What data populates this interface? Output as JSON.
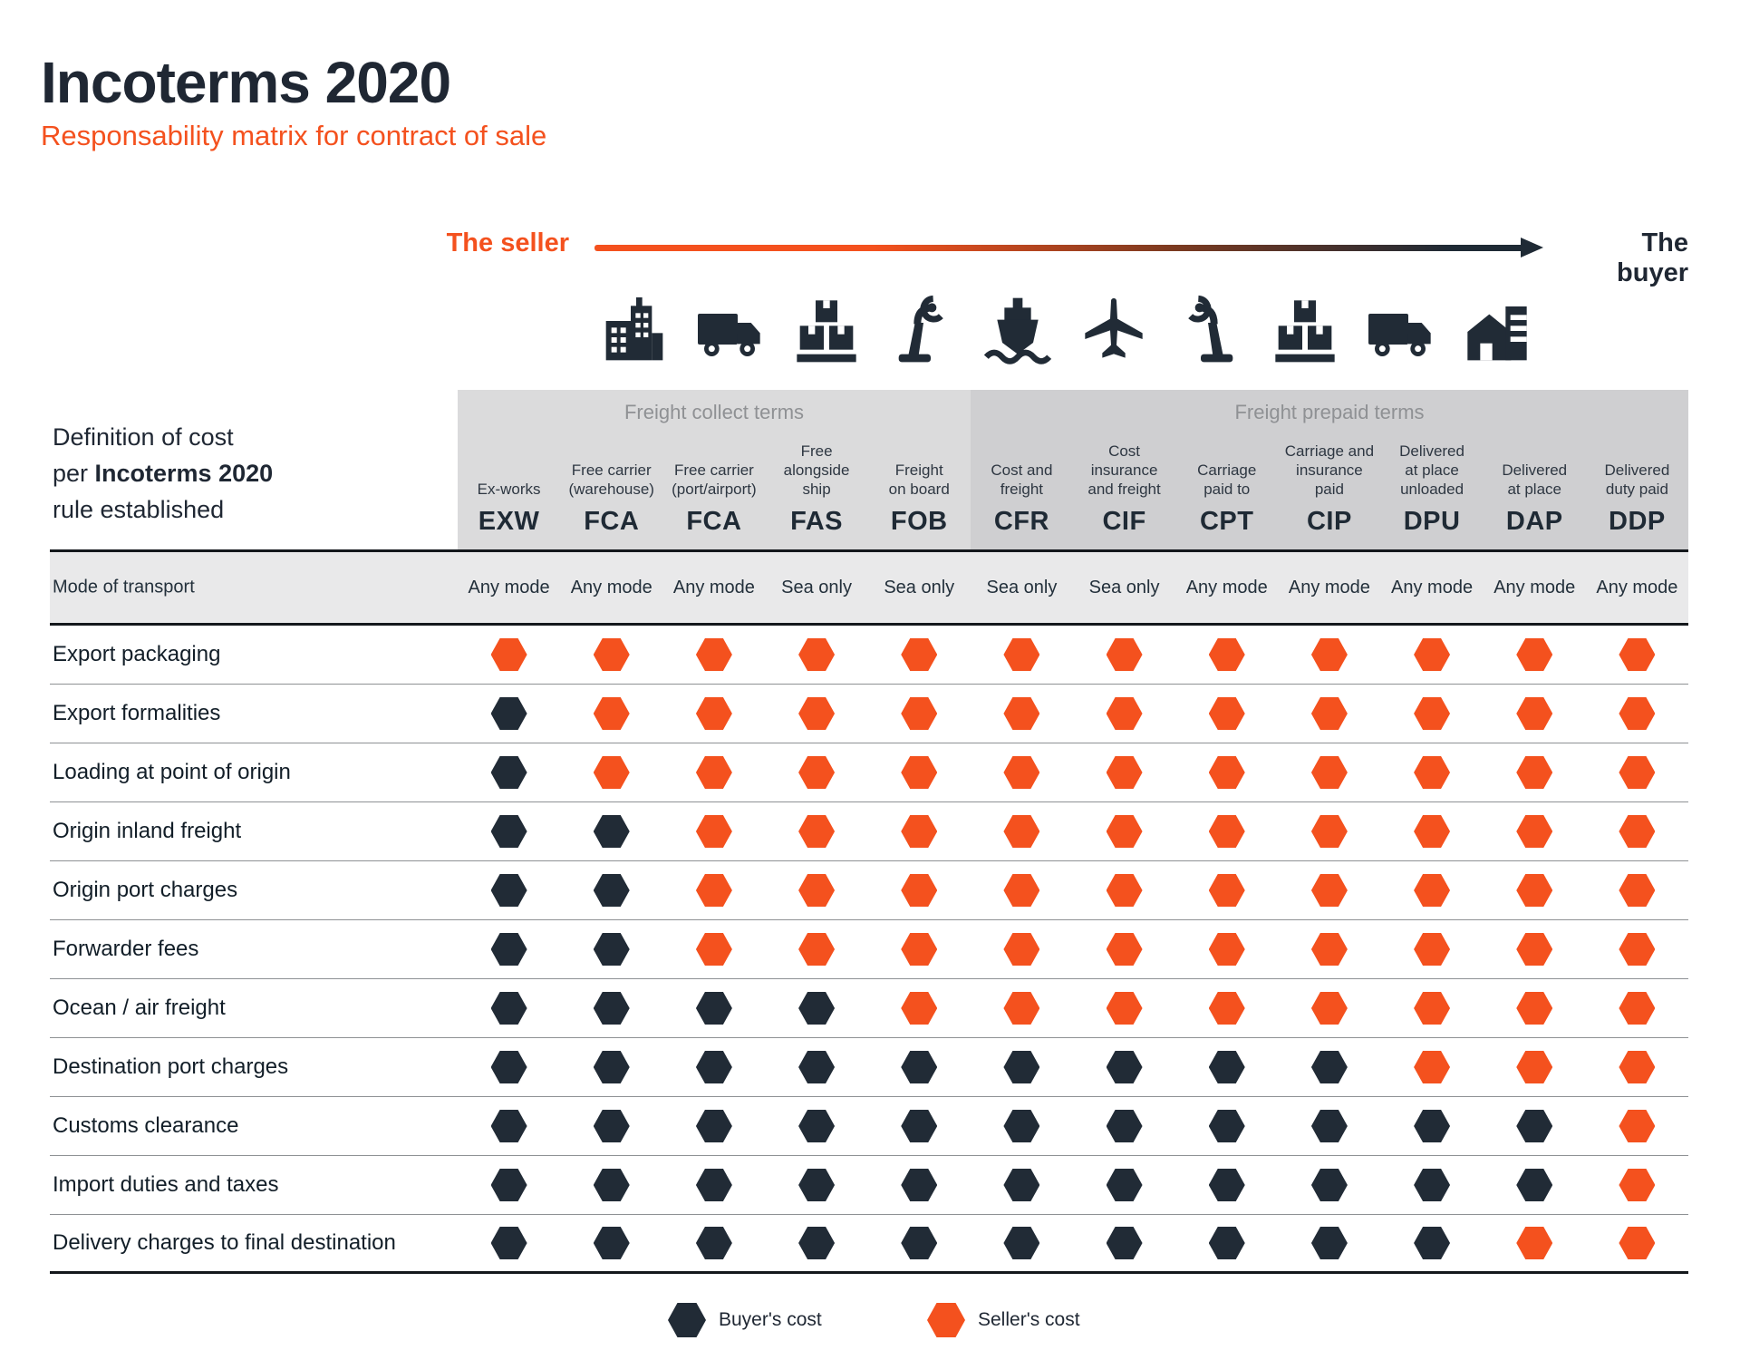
{
  "header": {
    "title": "Incoterms 2020",
    "subtitle": "Responsability matrix for contract of sale"
  },
  "flow": {
    "seller_label": "The seller",
    "buyer_label": "The buyer",
    "icons": [
      "factory-icon",
      "truck-icon",
      "pallet-boxes-icon",
      "crane-load-icon",
      "ship-icon",
      "plane-icon",
      "crane-unload-icon",
      "pallet-boxes-icon",
      "truck-icon",
      "warehouse-icon"
    ]
  },
  "definition_note": {
    "line1": "Definition of cost",
    "line2_prefix": "per ",
    "line2_bold": "Incoterms 2020",
    "line3": "rule established"
  },
  "groups": [
    {
      "label": "Freight collect terms"
    },
    {
      "label": "Freight prepaid terms"
    }
  ],
  "columns": [
    {
      "group": 0,
      "description": "Ex-works",
      "code": "EXW",
      "mode": "Any mode"
    },
    {
      "group": 0,
      "description": "Free carrier\n(warehouse)",
      "code": "FCA",
      "mode": "Any mode"
    },
    {
      "group": 0,
      "description": "Free carrier\n(port/airport)",
      "code": "FCA",
      "mode": "Any mode"
    },
    {
      "group": 0,
      "description": "Free\nalongside\nship",
      "code": "FAS",
      "mode": "Sea only"
    },
    {
      "group": 0,
      "description": "Freight\non board",
      "code": "FOB",
      "mode": "Sea only"
    },
    {
      "group": 1,
      "description": "Cost and\nfreight",
      "code": "CFR",
      "mode": "Sea only"
    },
    {
      "group": 1,
      "description": "Cost\ninsurance\nand freight",
      "code": "CIF",
      "mode": "Sea only"
    },
    {
      "group": 1,
      "description": "Carriage\npaid to",
      "code": "CPT",
      "mode": "Any mode"
    },
    {
      "group": 1,
      "description": "Carriage and\ninsurance\npaid",
      "code": "CIP",
      "mode": "Any mode"
    },
    {
      "group": 1,
      "description": "Delivered\nat place\nunloaded",
      "code": "DPU",
      "mode": "Any mode"
    },
    {
      "group": 1,
      "description": "Delivered\nat place",
      "code": "DAP",
      "mode": "Any mode"
    },
    {
      "group": 1,
      "description": "Delivered\nduty paid",
      "code": "DDP",
      "mode": "Any mode"
    }
  ],
  "mode_row_label": "Mode of transport",
  "rows": [
    {
      "label": "Export packaging",
      "cells": [
        "S",
        "S",
        "S",
        "S",
        "S",
        "S",
        "S",
        "S",
        "S",
        "S",
        "S",
        "S"
      ]
    },
    {
      "label": "Export formalities",
      "cells": [
        "B",
        "S",
        "S",
        "S",
        "S",
        "S",
        "S",
        "S",
        "S",
        "S",
        "S",
        "S"
      ]
    },
    {
      "label": "Loading at point of origin",
      "cells": [
        "B",
        "S",
        "S",
        "S",
        "S",
        "S",
        "S",
        "S",
        "S",
        "S",
        "S",
        "S"
      ]
    },
    {
      "label": "Origin inland freight",
      "cells": [
        "B",
        "B",
        "S",
        "S",
        "S",
        "S",
        "S",
        "S",
        "S",
        "S",
        "S",
        "S"
      ]
    },
    {
      "label": "Origin port charges",
      "cells": [
        "B",
        "B",
        "S",
        "S",
        "S",
        "S",
        "S",
        "S",
        "S",
        "S",
        "S",
        "S"
      ]
    },
    {
      "label": "Forwarder fees",
      "cells": [
        "B",
        "B",
        "S",
        "S",
        "S",
        "S",
        "S",
        "S",
        "S",
        "S",
        "S",
        "S"
      ]
    },
    {
      "label": "Ocean / air freight",
      "cells": [
        "B",
        "B",
        "B",
        "B",
        "S",
        "S",
        "S",
        "S",
        "S",
        "S",
        "S",
        "S"
      ]
    },
    {
      "label": "Destination port charges",
      "cells": [
        "B",
        "B",
        "B",
        "B",
        "B",
        "B",
        "B",
        "B",
        "B",
        "S",
        "S",
        "S"
      ]
    },
    {
      "label": "Customs clearance",
      "cells": [
        "B",
        "B",
        "B",
        "B",
        "B",
        "B",
        "B",
        "B",
        "B",
        "B",
        "B",
        "S"
      ]
    },
    {
      "label": "Import duties and taxes",
      "cells": [
        "B",
        "B",
        "B",
        "B",
        "B",
        "B",
        "B",
        "B",
        "B",
        "B",
        "B",
        "S"
      ]
    },
    {
      "label": "Delivery charges to final destination",
      "cells": [
        "B",
        "B",
        "B",
        "B",
        "B",
        "B",
        "B",
        "B",
        "B",
        "B",
        "S",
        "S"
      ]
    }
  ],
  "legend": {
    "items": [
      {
        "label": "Buyer's cost",
        "key": "buyer"
      },
      {
        "label": "Seller's cost",
        "key": "seller"
      }
    ]
  },
  "colors": {
    "seller": "#F4511E",
    "buyer": "#212B36",
    "title": "#1F2733",
    "group_label": "#8F9194",
    "panel_collect": "#DBDBDC",
    "panel_prepaid": "#CFCFD1",
    "mode_band": "#E9E9EA"
  }
}
